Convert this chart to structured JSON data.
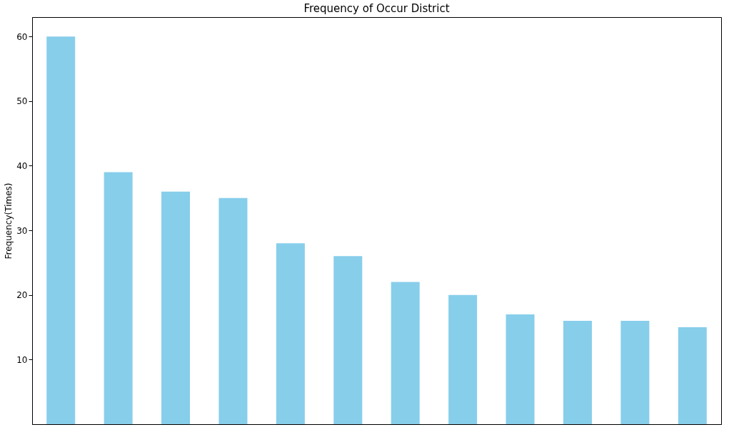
{
  "chart_data": {
    "type": "bar",
    "title": "Frequency of Occur District",
    "ylabel": "Frequency(Times)",
    "categories": [
      null,
      null,
      null,
      null,
      null,
      null,
      null,
      null,
      null,
      null,
      null,
      null
    ],
    "values": [
      60,
      39,
      36,
      35,
      28,
      26,
      22,
      20,
      17,
      16,
      16,
      15
    ],
    "color": "#87ceeb",
    "ylim": [
      0,
      63
    ],
    "yticks": [
      10,
      20,
      30,
      40,
      50,
      60
    ],
    "grid": false,
    "tick_labels": "y"
  }
}
